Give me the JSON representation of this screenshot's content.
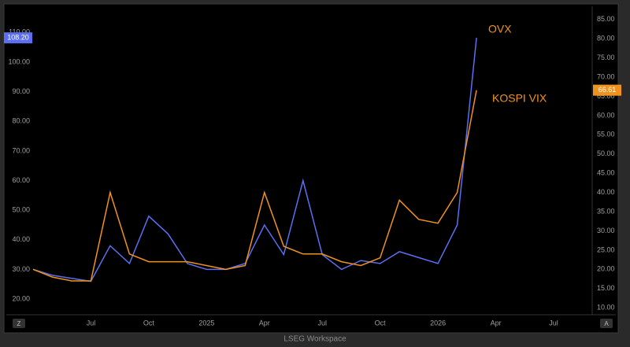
{
  "chart_data": {
    "type": "line",
    "x": [
      "2024-04",
      "2024-05",
      "2024-06",
      "2024-07",
      "2024-08",
      "2024-09",
      "2024-10",
      "2024-11",
      "2024-12",
      "2025-01",
      "2025-02",
      "2025-03",
      "2025-04",
      "2025-05",
      "2025-06",
      "2025-07",
      "2025-08",
      "2025-09",
      "2025-10",
      "2025-11",
      "2025-12",
      "2026-01",
      "2026-02",
      "2026-03"
    ],
    "series": [
      {
        "name": "OVX",
        "color": "#5b6ff0",
        "axis": "y",
        "values": [
          30,
          28,
          27,
          26,
          38,
          32,
          48,
          42,
          32,
          30,
          30,
          32,
          45,
          35,
          60,
          35,
          30,
          33,
          32,
          36,
          34,
          32,
          45,
          108.2
        ],
        "last_label": {
          "value": 108.2,
          "label": "108.20"
        }
      },
      {
        "name": "KOSPI VIX",
        "color": "#f0921e",
        "axis": "y2",
        "values": [
          20,
          18,
          17,
          17,
          40,
          24,
          22,
          22,
          22,
          21,
          20,
          21,
          40,
          26,
          24,
          24,
          22,
          21,
          23,
          38,
          33,
          32,
          40,
          66.61
        ],
        "last_label": {
          "value": 66.61,
          "label": "66.61"
        }
      }
    ],
    "xlim": [
      "2024-04",
      "2026-09"
    ],
    "xticks": [
      {
        "value": "2024-07",
        "label": "Jul"
      },
      {
        "value": "2024-10",
        "label": "Oct"
      },
      {
        "value": "2025-01",
        "label": "2025"
      },
      {
        "value": "2025-04",
        "label": "Apr"
      },
      {
        "value": "2025-07",
        "label": "Jul"
      },
      {
        "value": "2025-10",
        "label": "Oct"
      },
      {
        "value": "2026-01",
        "label": "2026"
      },
      {
        "value": "2026-04",
        "label": "Apr"
      },
      {
        "value": "2026-07",
        "label": "Jul"
      }
    ],
    "ylim": [
      14.7,
      117
    ],
    "yticks": [
      {
        "value": 20,
        "label": "20.00"
      },
      {
        "value": 30,
        "label": "30.00"
      },
      {
        "value": 40,
        "label": "40.00"
      },
      {
        "value": 50,
        "label": "50.00"
      },
      {
        "value": 60,
        "label": "60.00"
      },
      {
        "value": 70,
        "label": "70.00"
      },
      {
        "value": 80,
        "label": "80.00"
      },
      {
        "value": 90,
        "label": "90.00"
      },
      {
        "value": 100,
        "label": "100.00"
      },
      {
        "value": 110,
        "label": "110.00"
      }
    ],
    "y2lim": [
      8.2,
      87
    ],
    "y2ticks": [
      {
        "value": 10,
        "label": "10.00"
      },
      {
        "value": 15,
        "label": "15.00"
      },
      {
        "value": 20,
        "label": "20.00"
      },
      {
        "value": 25,
        "label": "25.00"
      },
      {
        "value": 30,
        "label": "30.00"
      },
      {
        "value": 35,
        "label": "35.00"
      },
      {
        "value": 40,
        "label": "40.00"
      },
      {
        "value": 45,
        "label": "45.00"
      },
      {
        "value": 50,
        "label": "50.00"
      },
      {
        "value": 55,
        "label": "55.00"
      },
      {
        "value": 60,
        "label": "60.00"
      },
      {
        "value": 65,
        "label": "65.00"
      },
      {
        "value": 70,
        "label": "70.00"
      },
      {
        "value": 75,
        "label": "75.00"
      },
      {
        "value": 80,
        "label": "80.00"
      },
      {
        "value": 85,
        "label": "85.00"
      }
    ],
    "grid": false
  },
  "buttons": [
    "Z",
    "A"
  ],
  "footer": "LSEG Workspace"
}
